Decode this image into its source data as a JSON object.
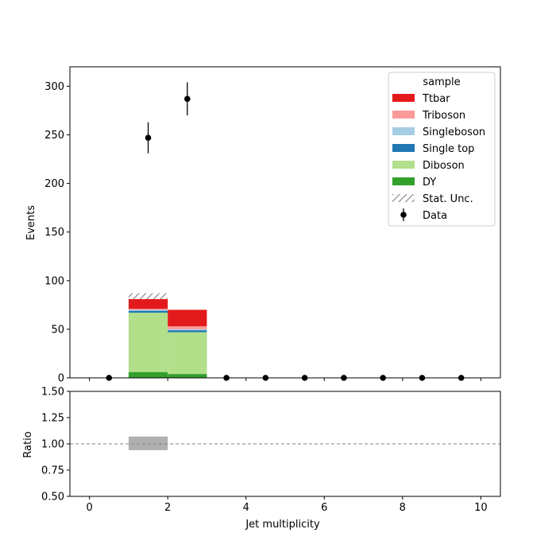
{
  "chart_data": {
    "type": "bar",
    "subtype": "stacked-histogram-with-ratio",
    "x": {
      "label": "Jet multiplicity",
      "range": [
        -0.5,
        10.5
      ],
      "ticks": [
        0,
        2,
        4,
        6,
        8,
        10
      ],
      "tick_labels": [
        "0",
        "2",
        "4",
        "6",
        "8",
        "10"
      ],
      "bin_edges": [
        0,
        1,
        2,
        3,
        4,
        5,
        6,
        7,
        8,
        9,
        10
      ]
    },
    "main": {
      "ylabel": "Events",
      "ylim": [
        0,
        320
      ],
      "yticks": [
        0,
        50,
        100,
        150,
        200,
        250,
        300
      ],
      "ytick_labels": [
        "0",
        "50",
        "100",
        "150",
        "200",
        "250",
        "300"
      ]
    },
    "ratio": {
      "ylabel": "Ratio",
      "ylim": [
        0.5,
        1.5
      ],
      "yticks": [
        0.5,
        0.75,
        1.0,
        1.25,
        1.5
      ],
      "ytick_labels": [
        "0.50",
        "0.75",
        "1.00",
        "1.25",
        "1.50"
      ],
      "reference_line": 1.0,
      "unc_bands": [
        {
          "x0": 1,
          "x1": 2,
          "lo": 0.94,
          "hi": 1.07
        }
      ]
    },
    "series": [
      {
        "name": "DY",
        "color": "#33a02c",
        "values": [
          0,
          6,
          4,
          0,
          0,
          0,
          0,
          0,
          0,
          0
        ]
      },
      {
        "name": "Diboson",
        "color": "#b2df8a",
        "values": [
          0,
          61,
          43,
          0,
          0,
          0,
          0,
          0,
          0,
          0
        ]
      },
      {
        "name": "Single top",
        "color": "#1f78b4",
        "values": [
          0,
          2,
          2,
          0,
          0,
          0,
          0,
          0,
          0,
          0
        ]
      },
      {
        "name": "Singleboson",
        "color": "#a6cee3",
        "values": [
          0,
          1,
          1,
          0,
          0,
          0,
          0,
          0,
          0,
          0
        ]
      },
      {
        "name": "Triboson",
        "color": "#fb9a99",
        "values": [
          0,
          1,
          3,
          0,
          0,
          0,
          0,
          0,
          0,
          0
        ]
      },
      {
        "name": "Ttbar",
        "color": "#e31a1c",
        "values": [
          0,
          10,
          17,
          0,
          0,
          0,
          0,
          0,
          0,
          0
        ]
      }
    ],
    "stat_unc": [
      {
        "x0": 1,
        "x1": 2,
        "lo": 81,
        "hi": 87
      }
    ],
    "data": {
      "name": "Data",
      "x": [
        0.5,
        1.5,
        2.5,
        3.5,
        4.5,
        5.5,
        6.5,
        7.5,
        8.5,
        9.5
      ],
      "y": [
        0,
        247,
        287,
        0,
        0,
        0,
        0,
        0,
        0,
        0
      ],
      "err": [
        0,
        16,
        17,
        0,
        0,
        0,
        0,
        0,
        0,
        0
      ]
    },
    "legend": {
      "title": "sample",
      "placement": "top-right",
      "entries": [
        {
          "label": "Ttbar",
          "kind": "patch",
          "color": "#e31a1c"
        },
        {
          "label": "Triboson",
          "kind": "patch",
          "color": "#fb9a99"
        },
        {
          "label": "Singleboson",
          "kind": "patch",
          "color": "#a6cee3"
        },
        {
          "label": "Single top",
          "kind": "patch",
          "color": "#1f78b4"
        },
        {
          "label": "Diboson",
          "kind": "patch",
          "color": "#b2df8a"
        },
        {
          "label": "DY",
          "kind": "patch",
          "color": "#33a02c"
        },
        {
          "label": "Stat. Unc.",
          "kind": "hatch",
          "color": "#808080"
        },
        {
          "label": "Data",
          "kind": "errorbar",
          "color": "#000000"
        }
      ]
    }
  }
}
